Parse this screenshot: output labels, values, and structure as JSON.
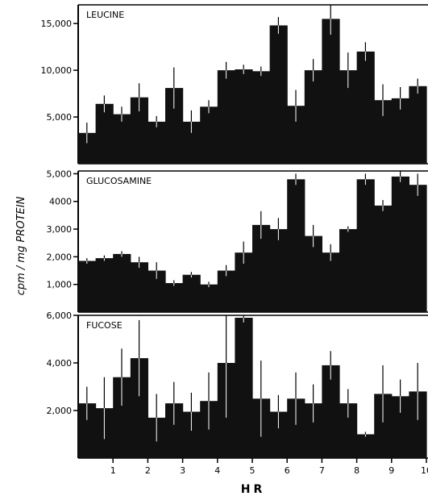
{
  "chart_data": [
    {
      "type": "bar",
      "title": "LEUCINE",
      "xlabel": "HR",
      "ylabel": "cpm / mg PROTEIN",
      "xlim": [
        0,
        10.4
      ],
      "ylim": [
        0,
        17000
      ],
      "yticks": [
        5000,
        10000,
        15000
      ],
      "ytick_labels": [
        "5,000",
        "10,000",
        "15,000"
      ],
      "grid": false,
      "bar_width_hr": 0.5,
      "bins": [
        {
          "hr": 0.25,
          "value": 3300,
          "err": 1100
        },
        {
          "hr": 0.75,
          "value": 6400,
          "err": 900
        },
        {
          "hr": 1.25,
          "value": 5300,
          "err": 800
        },
        {
          "hr": 1.75,
          "value": 7100,
          "err": 1500
        },
        {
          "hr": 2.25,
          "value": 4500,
          "err": 600
        },
        {
          "hr": 2.75,
          "value": 8100,
          "err": 2200
        },
        {
          "hr": 3.25,
          "value": 4500,
          "err": 1200
        },
        {
          "hr": 3.75,
          "value": 6100,
          "err": 700
        },
        {
          "hr": 4.25,
          "value": 10000,
          "err": 900
        },
        {
          "hr": 4.75,
          "value": 10100,
          "err": 500
        },
        {
          "hr": 5.25,
          "value": 9900,
          "err": 500
        },
        {
          "hr": 5.75,
          "value": 14800,
          "err": 900
        },
        {
          "hr": 6.25,
          "value": 6200,
          "err": 1700
        },
        {
          "hr": 6.75,
          "value": 10000,
          "err": 1200
        },
        {
          "hr": 7.25,
          "value": 15500,
          "err": 1700
        },
        {
          "hr": 7.75,
          "value": 10000,
          "err": 1900
        },
        {
          "hr": 8.25,
          "value": 12000,
          "err": 1000
        },
        {
          "hr": 8.75,
          "value": 6800,
          "err": 1700
        },
        {
          "hr": 9.25,
          "value": 7000,
          "err": 1200
        },
        {
          "hr": 9.75,
          "value": 8300,
          "err": 800
        }
      ]
    },
    {
      "type": "bar",
      "title": "GLUCOSAMINE",
      "xlabel": "HR",
      "ylabel": "cpm / mg PROTEIN",
      "xlim": [
        0,
        10.4
      ],
      "ylim": [
        0,
        5100
      ],
      "yticks": [
        1000,
        2000,
        3000,
        4000,
        5000
      ],
      "ytick_labels": [
        "1,000",
        "2,000",
        "3,000",
        "4000",
        "5,000"
      ],
      "grid": false,
      "bar_width_hr": 0.5,
      "bins": [
        {
          "hr": 0.25,
          "value": 1850,
          "err": 100
        },
        {
          "hr": 0.75,
          "value": 1950,
          "err": 100
        },
        {
          "hr": 1.25,
          "value": 2100,
          "err": 100
        },
        {
          "hr": 1.75,
          "value": 1800,
          "err": 200
        },
        {
          "hr": 2.25,
          "value": 1500,
          "err": 300
        },
        {
          "hr": 2.75,
          "value": 1050,
          "err": 100
        },
        {
          "hr": 3.25,
          "value": 1350,
          "err": 100
        },
        {
          "hr": 3.75,
          "value": 1000,
          "err": 100
        },
        {
          "hr": 4.25,
          "value": 1500,
          "err": 200
        },
        {
          "hr": 4.75,
          "value": 2150,
          "err": 400
        },
        {
          "hr": 5.25,
          "value": 3150,
          "err": 500
        },
        {
          "hr": 5.75,
          "value": 3000,
          "err": 400
        },
        {
          "hr": 6.25,
          "value": 4800,
          "err": 200
        },
        {
          "hr": 6.75,
          "value": 2750,
          "err": 400
        },
        {
          "hr": 7.25,
          "value": 2150,
          "err": 300
        },
        {
          "hr": 7.75,
          "value": 3000,
          "err": 100
        },
        {
          "hr": 8.25,
          "value": 4800,
          "err": 200
        },
        {
          "hr": 8.75,
          "value": 3850,
          "err": 200
        },
        {
          "hr": 9.25,
          "value": 4900,
          "err": 200
        },
        {
          "hr": 9.75,
          "value": 4600,
          "err": 400
        }
      ]
    },
    {
      "type": "bar",
      "title": "FUCOSE",
      "xlabel": "HR",
      "ylabel": "cpm / mg PROTEIN",
      "xlim": [
        0,
        10.4
      ],
      "ylim": [
        0,
        6000
      ],
      "yticks": [
        2000,
        4000,
        6000
      ],
      "ytick_labels": [
        "2,000",
        "4,000",
        "6,000"
      ],
      "xticks": [
        1,
        2,
        3,
        4,
        5,
        6,
        7,
        8,
        9,
        10
      ],
      "grid": false,
      "bar_width_hr": 0.5,
      "bins": [
        {
          "hr": 0.25,
          "value": 2300,
          "err": 700
        },
        {
          "hr": 0.75,
          "value": 2100,
          "err": 1300
        },
        {
          "hr": 1.25,
          "value": 3400,
          "err": 1200
        },
        {
          "hr": 1.75,
          "value": 4200,
          "err": 1600
        },
        {
          "hr": 2.25,
          "value": 1700,
          "err": 1000
        },
        {
          "hr": 2.75,
          "value": 2300,
          "err": 900
        },
        {
          "hr": 3.25,
          "value": 1950,
          "err": 800
        },
        {
          "hr": 3.75,
          "value": 2400,
          "err": 1200
        },
        {
          "hr": 4.25,
          "value": 4000,
          "err": 2300
        },
        {
          "hr": 4.75,
          "value": 5900,
          "err": 200
        },
        {
          "hr": 5.25,
          "value": 2500,
          "err": 1600
        },
        {
          "hr": 5.75,
          "value": 1950,
          "err": 700
        },
        {
          "hr": 6.25,
          "value": 2500,
          "err": 1100
        },
        {
          "hr": 6.75,
          "value": 2300,
          "err": 800
        },
        {
          "hr": 7.25,
          "value": 3900,
          "err": 600
        },
        {
          "hr": 7.75,
          "value": 2300,
          "err": 600
        },
        {
          "hr": 8.25,
          "value": 1000,
          "err": 100
        },
        {
          "hr": 8.75,
          "value": 2700,
          "err": 1200
        },
        {
          "hr": 9.25,
          "value": 2600,
          "err": 700
        },
        {
          "hr": 9.75,
          "value": 2800,
          "err": 1200
        }
      ]
    }
  ]
}
